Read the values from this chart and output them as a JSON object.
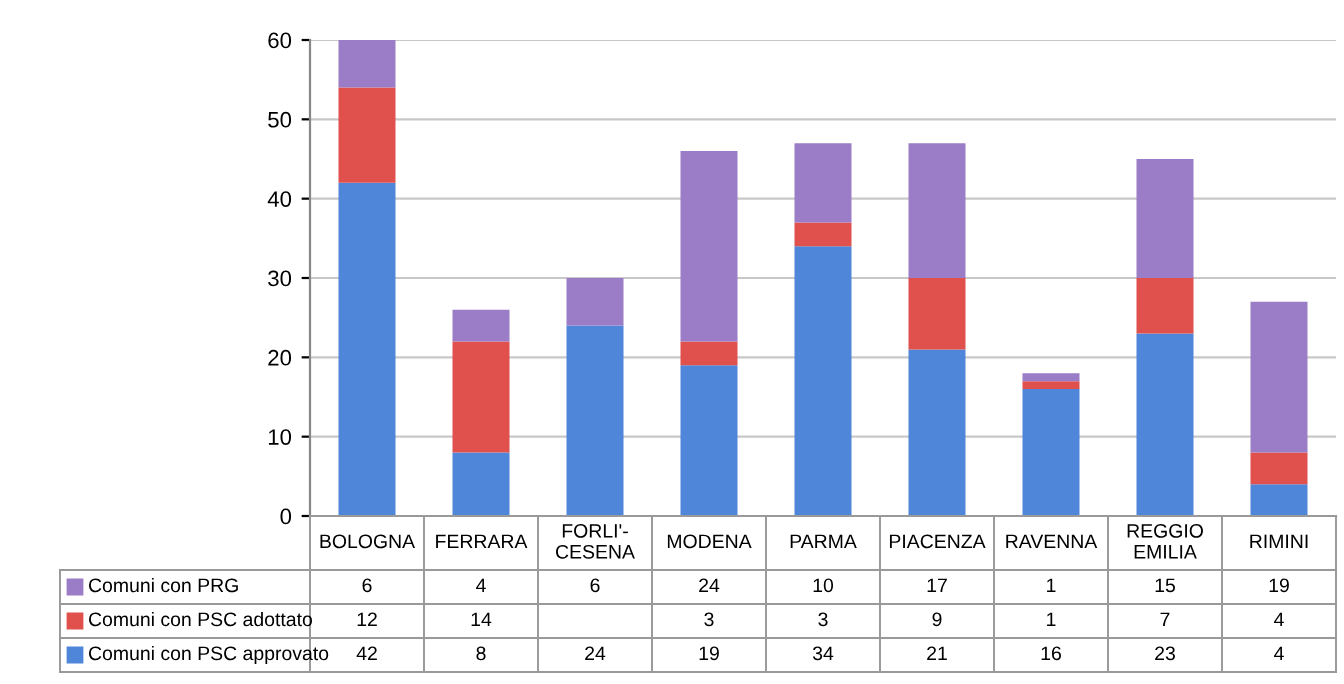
{
  "chart_data": {
    "type": "bar",
    "stacked": true,
    "categories": [
      "BOLOGNA",
      "FERRARA",
      "FORLI'-\nCESENA",
      "MODENA",
      "PARMA",
      "PIACENZA",
      "RAVENNA",
      "REGGIO\nEMILIA",
      "RIMINI"
    ],
    "series": [
      {
        "name": "Comuni con PSC approvato",
        "color": "#4f86d9",
        "values": [
          42,
          8,
          24,
          19,
          34,
          21,
          16,
          23,
          4
        ]
      },
      {
        "name": "Comuni con PSC adottato",
        "color": "#e0504d",
        "values": [
          12,
          14,
          null,
          3,
          3,
          9,
          1,
          7,
          4
        ]
      },
      {
        "name": "Comuni con PRG",
        "color": "#9b7cc6",
        "values": [
          6,
          4,
          6,
          24,
          10,
          17,
          1,
          15,
          19
        ]
      }
    ],
    "ylim": [
      0,
      60
    ],
    "yticks": [
      0,
      10,
      20,
      30,
      40,
      50,
      60
    ],
    "grid": "y",
    "legend": "bottom",
    "data_labels": true
  }
}
